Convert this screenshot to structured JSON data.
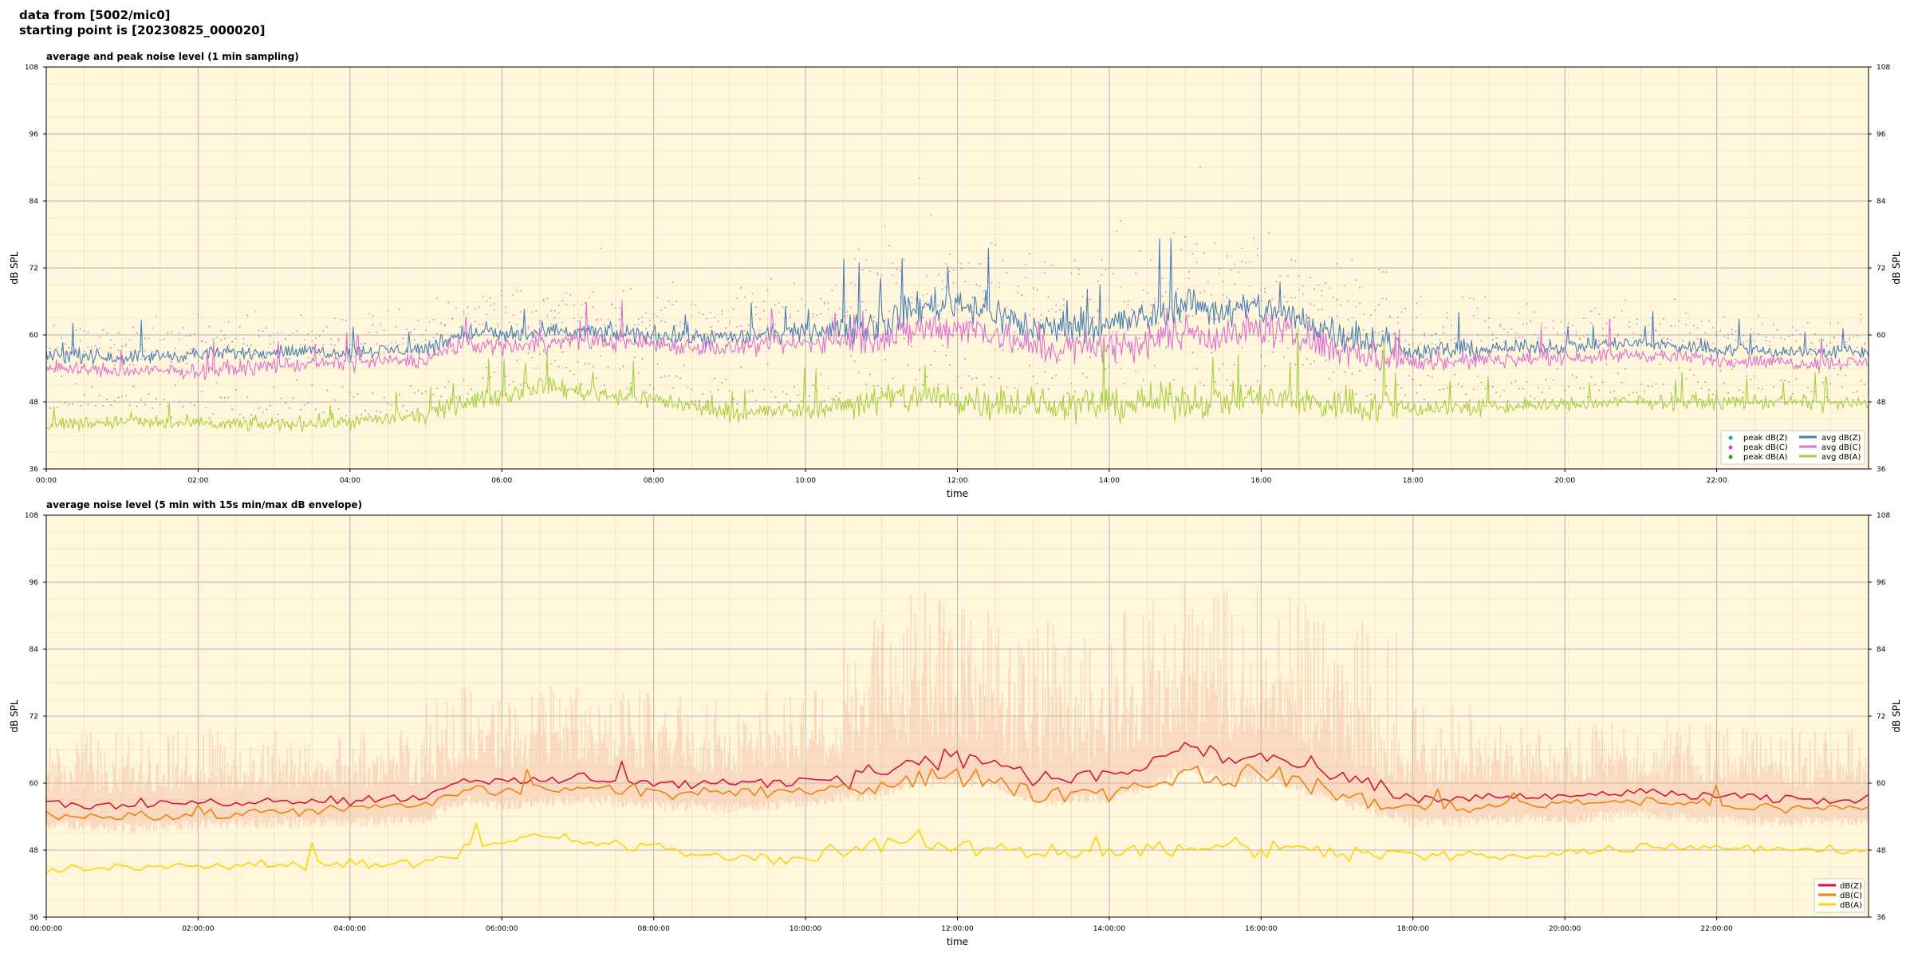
{
  "header": {
    "line1": "data from [5002/mic0]",
    "line2": "starting point is [20230825_000020]"
  },
  "chart_data": [
    {
      "type": "line",
      "title": "average and peak noise level (1 min sampling)",
      "xlabel": "time",
      "ylabel": "dB SPL",
      "ylim": [
        36,
        108
      ],
      "yticks": [
        36,
        48,
        60,
        72,
        84,
        96,
        108
      ],
      "xlim": [
        0,
        24
      ],
      "xticks": [
        "00:00",
        "02:00",
        "04:00",
        "06:00",
        "08:00",
        "10:00",
        "12:00",
        "14:00",
        "16:00",
        "18:00",
        "20:00",
        "22:00"
      ],
      "grid": true,
      "legend_position": "lower-right",
      "series": [
        {
          "name": "peak dB(Z)",
          "kind": "scatter",
          "color": "#1f9fd8"
        },
        {
          "name": "peak dB(C)",
          "kind": "scatter",
          "color": "#e040e0"
        },
        {
          "name": "peak dB(A)",
          "kind": "scatter",
          "color": "#3a9a3a"
        },
        {
          "name": "avg dB(Z)",
          "kind": "line",
          "color": "#4a7fb5",
          "x": [
            0,
            1,
            2,
            3,
            4,
            5,
            5.5,
            6,
            7,
            8,
            9,
            10,
            11,
            11.5,
            12,
            12.5,
            13,
            14,
            14.5,
            15,
            15.5,
            16,
            17,
            18,
            19,
            20,
            21,
            22,
            23,
            24
          ],
          "values": [
            56.5,
            56,
            56.5,
            57,
            57,
            57.5,
            60.5,
            60,
            60.5,
            60,
            59.5,
            60.5,
            62,
            65,
            66,
            64,
            61,
            62,
            63,
            66,
            64,
            65,
            60.5,
            57,
            57.5,
            58,
            58.5,
            57.5,
            57,
            57
          ]
        },
        {
          "name": "avg dB(C)",
          "kind": "line",
          "color": "#e070d0",
          "x": [
            0,
            1,
            2,
            3,
            4,
            5,
            5.5,
            6,
            7,
            8,
            9,
            10,
            11,
            11.5,
            12,
            12.5,
            13,
            14,
            14.5,
            15,
            15.5,
            16,
            17,
            18,
            19,
            20,
            21,
            22,
            23,
            24
          ],
          "values": [
            54,
            53.5,
            53.5,
            54.5,
            55,
            55.5,
            58.5,
            58,
            59,
            58.5,
            57.5,
            58.5,
            59.5,
            61,
            61.5,
            60.5,
            57.5,
            58,
            58.5,
            61,
            59.5,
            61.5,
            57.5,
            55,
            55.5,
            56,
            56.5,
            55.5,
            55,
            55
          ]
        },
        {
          "name": "avg dB(A)",
          "kind": "line",
          "color": "#a8d040",
          "x": [
            0,
            1,
            2,
            3,
            4,
            5,
            5.5,
            6,
            6.5,
            7,
            8,
            9,
            10,
            11,
            11.5,
            12,
            12.5,
            13,
            14,
            14.5,
            15,
            15.5,
            16,
            17,
            18,
            19,
            20,
            21,
            22,
            23,
            24
          ],
          "values": [
            44,
            44.5,
            44,
            44,
            44.5,
            45.5,
            48,
            49,
            51,
            50,
            48.5,
            46,
            46.5,
            48.5,
            49,
            48.5,
            48,
            47.5,
            47.5,
            48,
            48,
            48.5,
            48.5,
            47.5,
            47,
            47,
            47.5,
            48,
            48,
            48,
            47.5
          ]
        }
      ]
    },
    {
      "type": "line",
      "title": "average noise level (5 min with 15s min/max dB envelope)",
      "xlabel": "time",
      "ylabel": "dB SPL",
      "ylim": [
        36,
        108
      ],
      "yticks": [
        36,
        48,
        60,
        72,
        84,
        96,
        108
      ],
      "xlim": [
        0,
        24
      ],
      "xticks": [
        "00:00:00",
        "02:00:00",
        "04:00:00",
        "06:00:00",
        "08:00:00",
        "10:00:00",
        "12:00:00",
        "14:00:00",
        "16:00:00",
        "18:00:00",
        "20:00:00",
        "22:00:00"
      ],
      "grid": true,
      "legend_position": "lower-right",
      "envelope_color": "#f4b8a0",
      "series": [
        {
          "name": "dB(Z)",
          "color": "#d4143c",
          "x": [
            0,
            1,
            2,
            3,
            4,
            5,
            5.5,
            6,
            7,
            8,
            9,
            10,
            11,
            11.5,
            12,
            12.5,
            13,
            14,
            14.5,
            15,
            15.5,
            16,
            17,
            18,
            19,
            20,
            21,
            22,
            23,
            24
          ],
          "values": [
            56.5,
            56,
            56.5,
            57,
            57,
            57.5,
            61,
            60,
            61,
            60,
            59.5,
            60.5,
            62,
            64.5,
            64.5,
            64,
            60.5,
            61.5,
            63,
            67,
            64.5,
            65,
            61,
            57,
            57.5,
            57.5,
            58.5,
            57.5,
            57,
            57
          ]
        },
        {
          "name": "dB(C)",
          "color": "#f08010",
          "x": [
            0,
            1,
            2,
            3,
            4,
            5,
            5.5,
            6,
            7,
            8,
            9,
            10,
            11,
            11.5,
            12,
            12.5,
            13,
            14,
            14.5,
            15,
            15.5,
            16,
            17,
            18,
            19,
            20,
            21,
            22,
            23,
            24
          ],
          "values": [
            54.5,
            54,
            54,
            55,
            55.5,
            56,
            59,
            58.5,
            59,
            58.5,
            58,
            58.5,
            59.5,
            61,
            61,
            60.5,
            58,
            58.5,
            59.5,
            62,
            60.5,
            62,
            58,
            55.5,
            56,
            56.5,
            57,
            56,
            55.5,
            55.5
          ]
        },
        {
          "name": "dB(A)",
          "color": "#ffd400",
          "x": [
            0,
            1,
            2,
            3,
            4,
            5,
            5.5,
            6,
            6.5,
            7,
            8,
            9,
            10,
            11,
            11.5,
            12,
            12.5,
            13,
            14,
            14.5,
            15,
            15.5,
            16,
            17,
            18,
            19,
            20,
            21,
            22,
            23,
            24
          ],
          "values": [
            44.5,
            45,
            45,
            45.5,
            45.5,
            46,
            48,
            49,
            50.5,
            49.5,
            48.5,
            46.5,
            46.5,
            49,
            49.5,
            48.5,
            48.5,
            48,
            47.5,
            48,
            48.5,
            49,
            48.5,
            47.5,
            47,
            47,
            47.5,
            48.5,
            48.5,
            48.5,
            48
          ]
        }
      ]
    }
  ]
}
